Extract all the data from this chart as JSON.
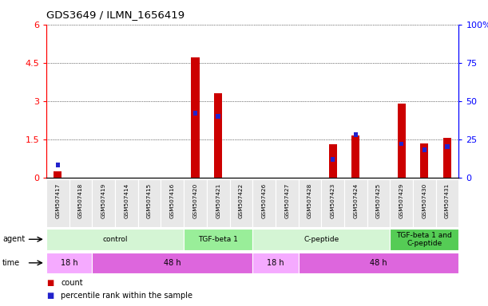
{
  "title": "GDS3649 / ILMN_1656419",
  "samples": [
    "GSM507417",
    "GSM507418",
    "GSM507419",
    "GSM507414",
    "GSM507415",
    "GSM507416",
    "GSM507420",
    "GSM507421",
    "GSM507422",
    "GSM507426",
    "GSM507427",
    "GSM507428",
    "GSM507423",
    "GSM507424",
    "GSM507425",
    "GSM507429",
    "GSM507430",
    "GSM507431"
  ],
  "count_values": [
    0.25,
    0.0,
    0.0,
    0.0,
    0.0,
    0.0,
    4.7,
    3.3,
    0.0,
    0.0,
    0.0,
    0.0,
    1.3,
    1.65,
    0.0,
    2.9,
    1.35,
    1.55
  ],
  "percentile_values": [
    8.0,
    0.0,
    0.0,
    0.0,
    0.0,
    0.0,
    42.0,
    40.0,
    0.0,
    0.0,
    0.0,
    0.0,
    12.0,
    28.0,
    0.0,
    22.0,
    18.0,
    20.0
  ],
  "ylim_left": [
    0,
    6
  ],
  "ylim_right": [
    0,
    100
  ],
  "yticks_left": [
    0,
    1.5,
    3.0,
    4.5,
    6.0
  ],
  "ytick_labels_left": [
    "0",
    "1.5",
    "3",
    "4.5",
    "6"
  ],
  "yticks_right": [
    0,
    25,
    50,
    75,
    100
  ],
  "ytick_labels_right": [
    "0",
    "25",
    "50",
    "75",
    "100%"
  ],
  "bar_width": 0.35,
  "count_color": "#cc0000",
  "percentile_color": "#2222cc",
  "grid_color": "#000000",
  "bg_color": "#ffffff",
  "agent_groups": [
    {
      "label": "control",
      "start": 0,
      "end": 6,
      "color": "#d4f5d4"
    },
    {
      "label": "TGF-beta 1",
      "start": 6,
      "end": 9,
      "color": "#99ee99"
    },
    {
      "label": "C-peptide",
      "start": 9,
      "end": 15,
      "color": "#d4f5d4"
    },
    {
      "label": "TGF-beta 1 and\nC-peptide",
      "start": 15,
      "end": 18,
      "color": "#55cc55"
    }
  ],
  "time_groups": [
    {
      "label": "18 h",
      "start": 0,
      "end": 2,
      "color": "#f5aaff"
    },
    {
      "label": "48 h",
      "start": 2,
      "end": 9,
      "color": "#dd66dd"
    },
    {
      "label": "18 h",
      "start": 9,
      "end": 11,
      "color": "#f5aaff"
    },
    {
      "label": "48 h",
      "start": 11,
      "end": 18,
      "color": "#dd66dd"
    }
  ],
  "legend_items": [
    {
      "label": "count",
      "color": "#cc0000"
    },
    {
      "label": "percentile rank within the sample",
      "color": "#2222cc"
    }
  ]
}
